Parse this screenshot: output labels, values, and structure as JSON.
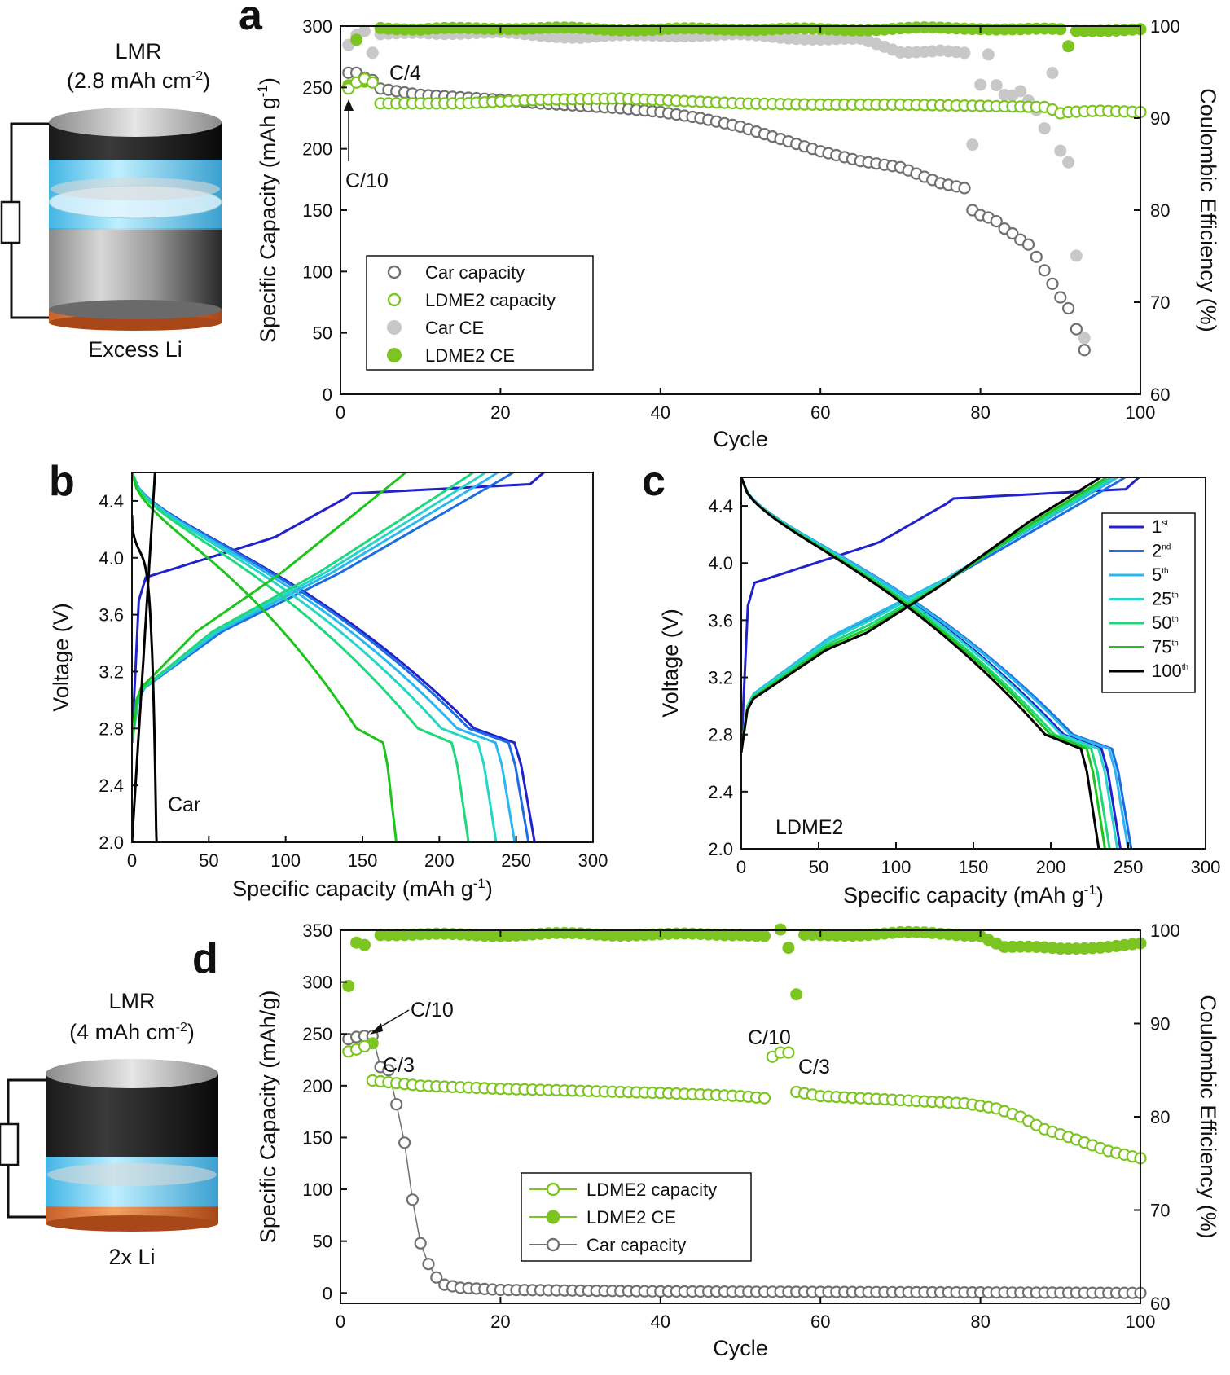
{
  "panels": {
    "a": "a",
    "b": "b",
    "c": "c",
    "d": "d"
  },
  "colors": {
    "car_capacity": "#707070",
    "car_ce": "#c8c8c8",
    "ldme2": "#7cc520",
    "ldme2_ce": "#7cc520",
    "cycle_1": "#2222cc",
    "cycle_2": "#1e6ee0",
    "cycle_5": "#2ab7f0",
    "cycle_25": "#25d6c8",
    "cycle_50": "#1fd77c",
    "cycle_75": "#1ec41e",
    "cycle_100": "#000000"
  },
  "cell_top": {
    "cathode": "LMR",
    "loading": "(2.8 mAh cm",
    "loading_exp": "-2",
    "loading_close": ")",
    "anode": "Excess Li"
  },
  "cell_bottom": {
    "cathode": "LMR",
    "loading": "(4 mAh cm",
    "loading_exp": "-2",
    "loading_close": ")",
    "anode": "2x Li"
  },
  "chart_data": [
    {
      "id": "a",
      "type": "scatter",
      "xlabel": "Cycle",
      "ylabel": "Specific Capacity (mAh g",
      "ylabel_exp": "-1",
      "ylabel_close": ")",
      "y2label": "Coulombic Efficiency (%)",
      "xlim": [
        0,
        100
      ],
      "ylim": [
        0,
        300
      ],
      "y2lim": [
        60,
        100
      ],
      "xticks": [
        "0",
        "20",
        "40",
        "60",
        "80",
        "100"
      ],
      "yticks": [
        "0",
        "50",
        "100",
        "150",
        "200",
        "250",
        "300"
      ],
      "y2ticks": [
        "60",
        "70",
        "80",
        "90",
        "100"
      ],
      "annotations": [
        "C/4",
        "C/10"
      ],
      "legend": [
        "Car capacity",
        "LDME2 capacity",
        "Car CE",
        "LDME2 CE"
      ],
      "series": [
        {
          "name": "Car capacity",
          "axis": "left",
          "style": "open",
          "points": [
            [
              1,
              262
            ],
            [
              2,
              262
            ],
            [
              3,
              258
            ],
            [
              4,
              256
            ],
            [
              5,
              249
            ],
            [
              10,
              244
            ],
            [
              15,
              242
            ],
            [
              20,
              240
            ],
            [
              25,
              237
            ],
            [
              30,
              235
            ],
            [
              35,
              233
            ],
            [
              40,
              230
            ],
            [
              45,
              225
            ],
            [
              50,
              218
            ],
            [
              55,
              208
            ],
            [
              60,
              198
            ],
            [
              65,
              190
            ],
            [
              70,
              185
            ],
            [
              75,
              172
            ],
            [
              78,
              168
            ],
            [
              79,
              150
            ],
            [
              80,
              146
            ],
            [
              81,
              144
            ],
            [
              82,
              141
            ],
            [
              83,
              135
            ],
            [
              84,
              131
            ],
            [
              85,
              126
            ],
            [
              86,
              122
            ],
            [
              87,
              112
            ],
            [
              88,
              101
            ],
            [
              89,
              90
            ],
            [
              90,
              79
            ],
            [
              91,
              70
            ],
            [
              92,
              53
            ],
            [
              93,
              36
            ]
          ]
        },
        {
          "name": "LDME2 capacity",
          "axis": "left",
          "style": "open",
          "points": [
            [
              1,
              249
            ],
            [
              2,
              254
            ],
            [
              3,
              257
            ],
            [
              4,
              254
            ],
            [
              5,
              237
            ],
            [
              15,
              237
            ],
            [
              25,
              240
            ],
            [
              35,
              241
            ],
            [
              50,
              237
            ],
            [
              60,
              236
            ],
            [
              70,
              236
            ],
            [
              80,
              235
            ],
            [
              88,
              234
            ],
            [
              89,
              232
            ],
            [
              90,
              229
            ],
            [
              91,
              230
            ],
            [
              95,
              231
            ],
            [
              100,
              230
            ]
          ]
        },
        {
          "name": "Car CE",
          "axis": "right",
          "style": "filled",
          "points": [
            [
              1,
              98
            ],
            [
              2,
              99
            ],
            [
              3,
              99.4
            ],
            [
              4,
              97
            ],
            [
              5,
              99
            ],
            [
              10,
              99.3
            ],
            [
              20,
              99.2
            ],
            [
              30,
              98.8
            ],
            [
              40,
              99
            ],
            [
              50,
              99
            ],
            [
              60,
              98.6
            ],
            [
              65,
              98.5
            ],
            [
              70,
              97.2
            ],
            [
              75,
              97.4
            ],
            [
              78,
              97
            ],
            [
              79,
              87
            ],
            [
              80,
              93.5
            ],
            [
              81,
              96.8
            ],
            [
              82,
              93.5
            ],
            [
              83,
              92.5
            ],
            [
              84,
              92.5
            ],
            [
              85,
              93
            ],
            [
              86,
              92
            ],
            [
              87,
              91
            ],
            [
              88,
              89
            ],
            [
              89,
              95
            ],
            [
              90,
              86.5
            ],
            [
              91,
              85.2
            ],
            [
              92,
              75
            ],
            [
              93,
              66
            ]
          ]
        },
        {
          "name": "LDME2 CE",
          "axis": "right",
          "style": "filled",
          "points": [
            [
              1,
              93.5
            ],
            [
              2,
              98.5
            ],
            [
              3,
              94
            ],
            [
              4,
              94
            ],
            [
              5,
              99.9
            ],
            [
              10,
              99.6
            ],
            [
              20,
              99.8
            ],
            [
              30,
              99.7
            ],
            [
              40,
              99.6
            ],
            [
              50,
              99.7
            ],
            [
              60,
              99.6
            ],
            [
              70,
              99.7
            ],
            [
              80,
              99.8
            ],
            [
              85,
              99.6
            ],
            [
              90,
              99.6
            ],
            [
              91,
              97.8
            ],
            [
              92,
              99.5
            ],
            [
              95,
              99.6
            ],
            [
              100,
              99.6
            ]
          ]
        }
      ]
    },
    {
      "id": "b",
      "type": "line",
      "label": "Car",
      "xlabel": "Specific capacity (mAh g",
      "xlabel_exp": "-1",
      "xlabel_close": ")",
      "ylabel": "Voltage (V)",
      "xlim": [
        0,
        300
      ],
      "ylim": [
        2.0,
        4.6
      ],
      "xticks": [
        "0",
        "50",
        "100",
        "150",
        "200",
        "250",
        "300"
      ],
      "yticks": [
        "2.0",
        "2.4",
        "2.8",
        "3.2",
        "3.6",
        "4.0",
        "4.4"
      ],
      "series": [
        {
          "name": "1st",
          "charge_end": 268,
          "discharge_end": 262
        },
        {
          "name": "2nd",
          "charge_end": 248,
          "discharge_end": 258
        },
        {
          "name": "5th",
          "charge_end": 238,
          "discharge_end": 249
        },
        {
          "name": "25th",
          "charge_end": 230,
          "discharge_end": 237
        },
        {
          "name": "50th",
          "charge_end": 222,
          "discharge_end": 219
        },
        {
          "name": "75th",
          "charge_end": 178,
          "discharge_end": 172
        },
        {
          "name": "100th",
          "charge_end": 15,
          "discharge_end": 16
        }
      ]
    },
    {
      "id": "c",
      "type": "line",
      "label": "LDME2",
      "xlabel": "Specific capacity (mAh g",
      "xlabel_exp": "-1",
      "xlabel_close": ")",
      "ylabel": "Voltage (V)",
      "xlim": [
        0,
        300
      ],
      "ylim": [
        2.0,
        4.6
      ],
      "xticks": [
        "0",
        "50",
        "100",
        "150",
        "200",
        "250",
        "300"
      ],
      "yticks": [
        "2.0",
        "2.4",
        "2.8",
        "3.2",
        "3.6",
        "4.0",
        "4.4"
      ],
      "legend": [
        {
          "base": "1",
          "sup": "st"
        },
        {
          "base": "2",
          "sup": "nd"
        },
        {
          "base": "5",
          "sup": "th"
        },
        {
          "base": "25",
          "sup": "th"
        },
        {
          "base": "50",
          "sup": "th"
        },
        {
          "base": "75",
          "sup": "th"
        },
        {
          "base": "100",
          "sup": "th"
        }
      ],
      "series": [
        {
          "name": "1st",
          "charge_end": 257,
          "discharge_end": 245
        },
        {
          "name": "2nd",
          "charge_end": 248,
          "discharge_end": 252
        },
        {
          "name": "5th",
          "charge_end": 243,
          "discharge_end": 250
        },
        {
          "name": "25th",
          "charge_end": 240,
          "discharge_end": 243
        },
        {
          "name": "50th",
          "charge_end": 239,
          "discharge_end": 238
        },
        {
          "name": "75th",
          "charge_end": 236,
          "discharge_end": 235
        },
        {
          "name": "100th",
          "charge_end": 232,
          "discharge_end": 231
        }
      ]
    },
    {
      "id": "d",
      "type": "scatter",
      "xlabel": "Cycle",
      "ylabel": "Specific Capacity (mAh/g)",
      "y2label": "Coulombic Efficiency (%)",
      "xlim": [
        0,
        100
      ],
      "ylim": [
        -10,
        350
      ],
      "y2lim": [
        60,
        100
      ],
      "xticks": [
        "0",
        "20",
        "40",
        "60",
        "80",
        "100"
      ],
      "yticks": [
        "0",
        "50",
        "100",
        "150",
        "200",
        "250",
        "300",
        "350"
      ],
      "y2ticks": [
        "60",
        "70",
        "80",
        "90",
        "100"
      ],
      "annotations": [
        "C/10",
        "C/3",
        "C/10",
        "C/3"
      ],
      "legend": [
        "LDME2 capacity",
        "LDME2 CE",
        "Car capacity"
      ],
      "series": [
        {
          "name": "LDME2 capacity",
          "axis": "left",
          "style": "open",
          "points": [
            [
              1,
              233
            ],
            [
              2,
              235
            ],
            [
              3,
              238
            ],
            [
              4,
              205
            ],
            [
              10,
              200
            ],
            [
              20,
              197
            ],
            [
              30,
              195
            ],
            [
              40,
              193
            ],
            [
              50,
              190
            ],
            [
              53,
              188
            ],
            [
              54,
              228
            ],
            [
              55,
              232
            ],
            [
              56,
              232
            ],
            [
              57,
              194
            ],
            [
              60,
              190
            ],
            [
              70,
              186
            ],
            [
              78,
              183
            ],
            [
              82,
              178
            ],
            [
              85,
              170
            ],
            [
              88,
              158
            ],
            [
              92,
              148
            ],
            [
              96,
              137
            ],
            [
              100,
              130
            ]
          ]
        },
        {
          "name": "LDME2 CE",
          "axis": "right",
          "style": "filled",
          "points": [
            [
              1,
              94
            ],
            [
              2,
              98.7
            ],
            [
              3,
              98.5
            ],
            [
              4,
              88
            ],
            [
              5,
              99.6
            ],
            [
              10,
              99.5
            ],
            [
              20,
              99.5
            ],
            [
              30,
              99.6
            ],
            [
              40,
              99.5
            ],
            [
              50,
              99.6
            ],
            [
              53,
              99.4
            ],
            [
              54,
              102
            ],
            [
              56,
              98
            ],
            [
              57,
              93
            ],
            [
              58,
              99.4
            ],
            [
              70,
              99.7
            ],
            [
              80,
              99.5
            ],
            [
              83,
              98.2
            ],
            [
              90,
              98
            ],
            [
              100,
              98.5
            ]
          ]
        },
        {
          "name": "Car capacity",
          "axis": "left",
          "style": "open",
          "points": [
            [
              1,
              245
            ],
            [
              2,
              247
            ],
            [
              3,
              248
            ],
            [
              4,
              248
            ],
            [
              5,
              218
            ],
            [
              6,
              215
            ],
            [
              7,
              182
            ],
            [
              8,
              145
            ],
            [
              9,
              90
            ],
            [
              10,
              48
            ],
            [
              11,
              28
            ],
            [
              12,
              15
            ],
            [
              13,
              8
            ],
            [
              15,
              5
            ],
            [
              20,
              3
            ],
            [
              40,
              1.5
            ],
            [
              60,
              1
            ],
            [
              80,
              0.5
            ],
            [
              100,
              0
            ]
          ]
        }
      ]
    }
  ]
}
